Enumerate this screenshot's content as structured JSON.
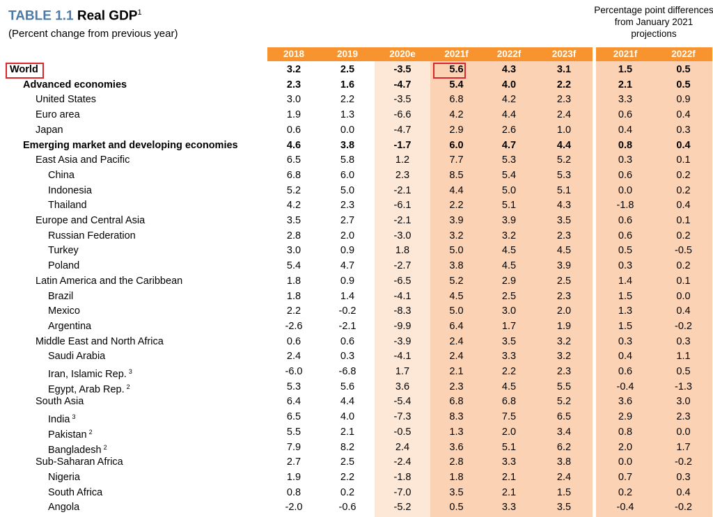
{
  "header": {
    "title_prefix": "TABLE 1.1",
    "title_main": "Real GDP",
    "title_sup": "1",
    "subtitle": "(Percent change from previous year)",
    "diff_note": "Percentage point differences from January 2021 projections"
  },
  "columns": [
    "2018",
    "2019",
    "2020e",
    "2021f",
    "2022f",
    "2023f"
  ],
  "diff_columns": [
    "2021f",
    "2022f"
  ],
  "colors": {
    "header": "#f7942f",
    "estimate_col": "#fde8d8",
    "forecast_col": "#fbd2b3",
    "title_prefix": "#4a7ba8",
    "highlight_box": "#d9262c"
  },
  "rows": [
    {
      "label": "World",
      "sup": "",
      "level": 0,
      "bold": true,
      "values": [
        "3.2",
        "2.5",
        "-3.5",
        "5.6",
        "4.3",
        "3.1"
      ],
      "diff": [
        "1.5",
        "0.5"
      ]
    },
    {
      "label": "Advanced economies",
      "sup": "",
      "level": 1,
      "bold": true,
      "values": [
        "2.3",
        "1.6",
        "-4.7",
        "5.4",
        "4.0",
        "2.2"
      ],
      "diff": [
        "2.1",
        "0.5"
      ]
    },
    {
      "label": "United States",
      "sup": "",
      "level": 2,
      "bold": false,
      "values": [
        "3.0",
        "2.2",
        "-3.5",
        "6.8",
        "4.2",
        "2.3"
      ],
      "diff": [
        "3.3",
        "0.9"
      ]
    },
    {
      "label": "Euro area",
      "sup": "",
      "level": 2,
      "bold": false,
      "values": [
        "1.9",
        "1.3",
        "-6.6",
        "4.2",
        "4.4",
        "2.4"
      ],
      "diff": [
        "0.6",
        "0.4"
      ]
    },
    {
      "label": "Japan",
      "sup": "",
      "level": 2,
      "bold": false,
      "values": [
        "0.6",
        "0.0",
        "-4.7",
        "2.9",
        "2.6",
        "1.0"
      ],
      "diff": [
        "0.4",
        "0.3"
      ]
    },
    {
      "label": "Emerging market and developing economies",
      "sup": "",
      "level": 1,
      "bold": true,
      "values": [
        "4.6",
        "3.8",
        "-1.7",
        "6.0",
        "4.7",
        "4.4"
      ],
      "diff": [
        "0.8",
        "0.4"
      ]
    },
    {
      "label": "East Asia and Pacific",
      "sup": "",
      "level": 2,
      "bold": false,
      "values": [
        "6.5",
        "5.8",
        "1.2",
        "7.7",
        "5.3",
        "5.2"
      ],
      "diff": [
        "0.3",
        "0.1"
      ]
    },
    {
      "label": "China",
      "sup": "",
      "level": 3,
      "bold": false,
      "values": [
        "6.8",
        "6.0",
        "2.3",
        "8.5",
        "5.4",
        "5.3"
      ],
      "diff": [
        "0.6",
        "0.2"
      ]
    },
    {
      "label": "Indonesia",
      "sup": "",
      "level": 3,
      "bold": false,
      "values": [
        "5.2",
        "5.0",
        "-2.1",
        "4.4",
        "5.0",
        "5.1"
      ],
      "diff": [
        "0.0",
        "0.2"
      ]
    },
    {
      "label": "Thailand",
      "sup": "",
      "level": 3,
      "bold": false,
      "values": [
        "4.2",
        "2.3",
        "-6.1",
        "2.2",
        "5.1",
        "4.3"
      ],
      "diff": [
        "-1.8",
        "0.4"
      ]
    },
    {
      "label": "Europe and Central Asia",
      "sup": "",
      "level": 2,
      "bold": false,
      "values": [
        "3.5",
        "2.7",
        "-2.1",
        "3.9",
        "3.9",
        "3.5"
      ],
      "diff": [
        "0.6",
        "0.1"
      ]
    },
    {
      "label": "Russian Federation",
      "sup": "",
      "level": 3,
      "bold": false,
      "values": [
        "2.8",
        "2.0",
        "-3.0",
        "3.2",
        "3.2",
        "2.3"
      ],
      "diff": [
        "0.6",
        "0.2"
      ]
    },
    {
      "label": "Turkey",
      "sup": "",
      "level": 3,
      "bold": false,
      "values": [
        "3.0",
        "0.9",
        "1.8",
        "5.0",
        "4.5",
        "4.5"
      ],
      "diff": [
        "0.5",
        "-0.5"
      ]
    },
    {
      "label": "Poland",
      "sup": "",
      "level": 3,
      "bold": false,
      "values": [
        "5.4",
        "4.7",
        "-2.7",
        "3.8",
        "4.5",
        "3.9"
      ],
      "diff": [
        "0.3",
        "0.2"
      ]
    },
    {
      "label": "Latin America and the Caribbean",
      "sup": "",
      "level": 2,
      "bold": false,
      "values": [
        "1.8",
        "0.9",
        "-6.5",
        "5.2",
        "2.9",
        "2.5"
      ],
      "diff": [
        "1.4",
        "0.1"
      ]
    },
    {
      "label": "Brazil",
      "sup": "",
      "level": 3,
      "bold": false,
      "values": [
        "1.8",
        "1.4",
        "-4.1",
        "4.5",
        "2.5",
        "2.3"
      ],
      "diff": [
        "1.5",
        "0.0"
      ]
    },
    {
      "label": "Mexico",
      "sup": "",
      "level": 3,
      "bold": false,
      "values": [
        "2.2",
        "-0.2",
        "-8.3",
        "5.0",
        "3.0",
        "2.0"
      ],
      "diff": [
        "1.3",
        "0.4"
      ]
    },
    {
      "label": "Argentina",
      "sup": "",
      "level": 3,
      "bold": false,
      "values": [
        "-2.6",
        "-2.1",
        "-9.9",
        "6.4",
        "1.7",
        "1.9"
      ],
      "diff": [
        "1.5",
        "-0.2"
      ]
    },
    {
      "label": "Middle East and North Africa",
      "sup": "",
      "level": 2,
      "bold": false,
      "values": [
        "0.6",
        "0.6",
        "-3.9",
        "2.4",
        "3.5",
        "3.2"
      ],
      "diff": [
        "0.3",
        "0.3"
      ]
    },
    {
      "label": "Saudi Arabia",
      "sup": "",
      "level": 3,
      "bold": false,
      "values": [
        "2.4",
        "0.3",
        "-4.1",
        "2.4",
        "3.3",
        "3.2"
      ],
      "diff": [
        "0.4",
        "1.1"
      ]
    },
    {
      "label": "Iran, Islamic Rep.",
      "sup": "3",
      "level": 3,
      "bold": false,
      "values": [
        "-6.0",
        "-6.8",
        "1.7",
        "2.1",
        "2.2",
        "2.3"
      ],
      "diff": [
        "0.6",
        "0.5"
      ]
    },
    {
      "label": "Egypt, Arab Rep.",
      "sup": "2",
      "level": 3,
      "bold": false,
      "values": [
        "5.3",
        "5.6",
        "3.6",
        "2.3",
        "4.5",
        "5.5"
      ],
      "diff": [
        "-0.4",
        "-1.3"
      ]
    },
    {
      "label": "South Asia",
      "sup": "",
      "level": 2,
      "bold": false,
      "values": [
        "6.4",
        "4.4",
        "-5.4",
        "6.8",
        "6.8",
        "5.2"
      ],
      "diff": [
        "3.6",
        "3.0"
      ]
    },
    {
      "label": "India",
      "sup": "3",
      "level": 3,
      "bold": false,
      "values": [
        "6.5",
        "4.0",
        "-7.3",
        "8.3",
        "7.5",
        "6.5"
      ],
      "diff": [
        "2.9",
        "2.3"
      ]
    },
    {
      "label": "Pakistan",
      "sup": "2",
      "level": 3,
      "bold": false,
      "values": [
        "5.5",
        "2.1",
        "-0.5",
        "1.3",
        "2.0",
        "3.4"
      ],
      "diff": [
        "0.8",
        "0.0"
      ]
    },
    {
      "label": "Bangladesh",
      "sup": "2",
      "level": 3,
      "bold": false,
      "values": [
        "7.9",
        "8.2",
        "2.4",
        "3.6",
        "5.1",
        "6.2"
      ],
      "diff": [
        "2.0",
        "1.7"
      ]
    },
    {
      "label": "Sub-Saharan Africa",
      "sup": "",
      "level": 2,
      "bold": false,
      "values": [
        "2.7",
        "2.5",
        "-2.4",
        "2.8",
        "3.3",
        "3.8"
      ],
      "diff": [
        "0.0",
        "-0.2"
      ]
    },
    {
      "label": "Nigeria",
      "sup": "",
      "level": 3,
      "bold": false,
      "values": [
        "1.9",
        "2.2",
        "-1.8",
        "1.8",
        "2.1",
        "2.4"
      ],
      "diff": [
        "0.7",
        "0.3"
      ]
    },
    {
      "label": "South Africa",
      "sup": "",
      "level": 3,
      "bold": false,
      "values": [
        "0.8",
        "0.2",
        "-7.0",
        "3.5",
        "2.1",
        "1.5"
      ],
      "diff": [
        "0.2",
        "0.4"
      ]
    },
    {
      "label": "Angola",
      "sup": "",
      "level": 3,
      "bold": false,
      "values": [
        "-2.0",
        "-0.6",
        "-5.2",
        "0.5",
        "3.3",
        "3.5"
      ],
      "diff": [
        "-0.4",
        "-0.2"
      ]
    }
  ]
}
